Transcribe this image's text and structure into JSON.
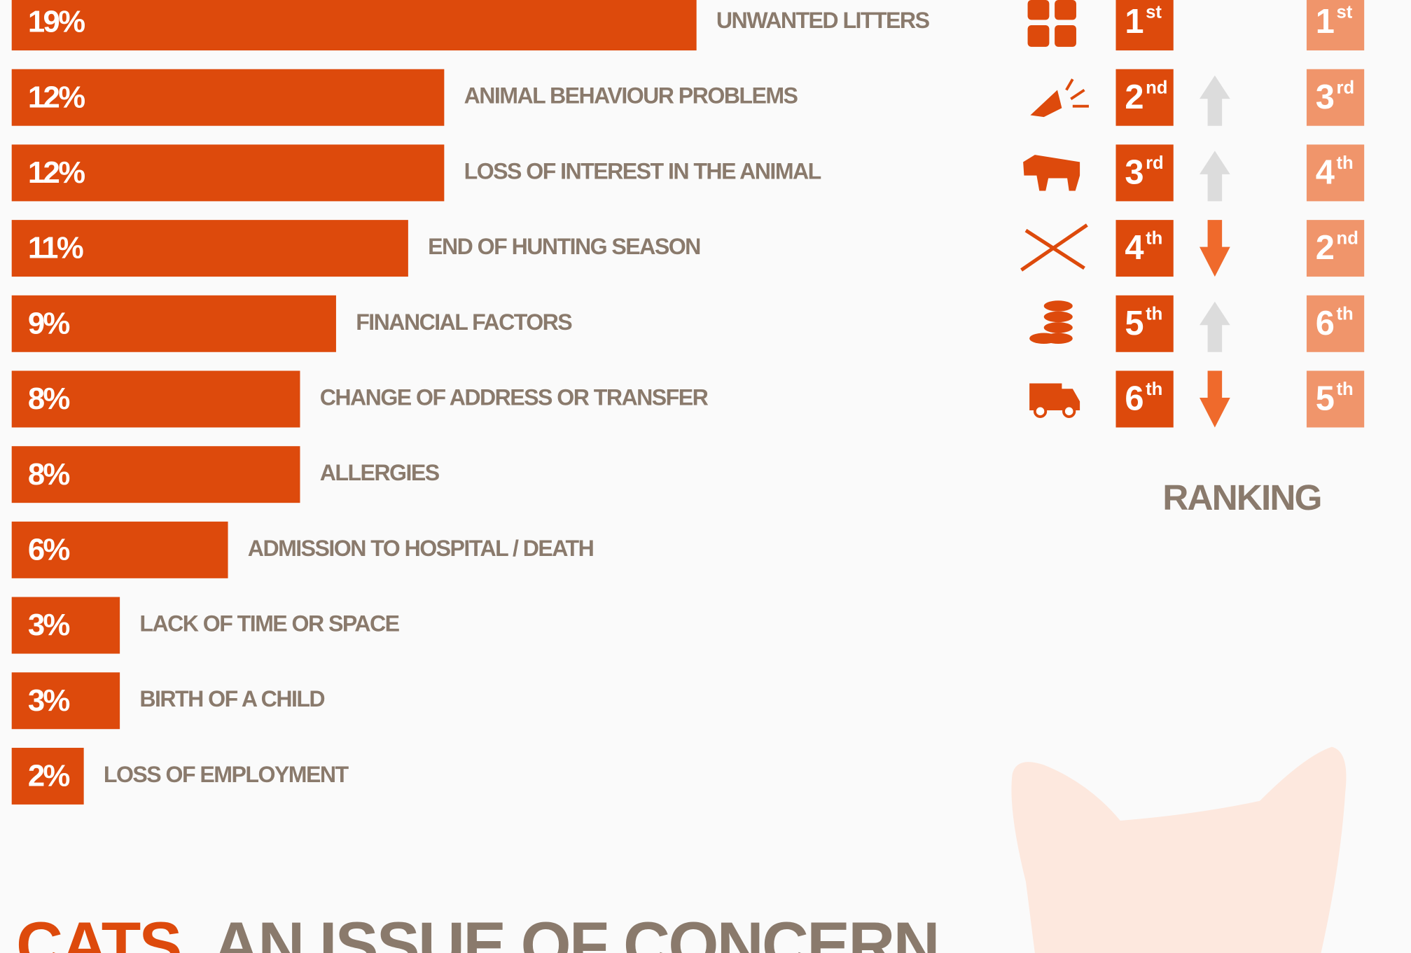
{
  "chart_data": {
    "type": "bar",
    "orientation": "horizontal",
    "color": "#dd4a0c",
    "categories": [
      "UNWANTED LITTERS",
      "ANIMAL BEHAVIOUR PROBLEMS",
      "LOSS OF INTEREST IN THE ANIMAL",
      "END OF HUNTING SEASON",
      "FINANCIAL FACTORS",
      "CHANGE OF ADDRESS OR TRANSFER",
      "ALLERGIES",
      "ADMISSION TO HOSPITAL / DEATH",
      "LACK OF TIME OR SPACE",
      "BIRTH OF A CHILD",
      "LOSS OF EMPLOYMENT"
    ],
    "values": [
      19,
      12,
      12,
      11,
      9,
      8,
      8,
      6,
      3,
      3,
      2
    ],
    "value_labels": [
      "19%",
      "12%",
      "12%",
      "11%",
      "9%",
      "8%",
      "8%",
      "6%",
      "3%",
      "3%",
      "2%"
    ]
  },
  "ranking": {
    "label": "RANKING",
    "current": [
      {
        "number": "1",
        "suffix": "st"
      },
      {
        "number": "2",
        "suffix": "nd"
      },
      {
        "number": "3",
        "suffix": "rd"
      },
      {
        "number": "4",
        "suffix": "th"
      },
      {
        "number": "5",
        "suffix": "th"
      },
      {
        "number": "6",
        "suffix": "th"
      }
    ],
    "previous": [
      {
        "number": "1",
        "suffix": "st"
      },
      {
        "number": "3",
        "suffix": "rd"
      },
      {
        "number": "4",
        "suffix": "th"
      },
      {
        "number": "2",
        "suffix": "nd"
      },
      {
        "number": "6",
        "suffix": "th"
      },
      {
        "number": "5",
        "suffix": "th"
      }
    ],
    "trend": [
      null,
      "up",
      "up",
      "down",
      "up",
      "down"
    ]
  },
  "heading": {
    "highlight": "CATS,",
    "rest": "AN ISSUE OF CONCERN"
  }
}
